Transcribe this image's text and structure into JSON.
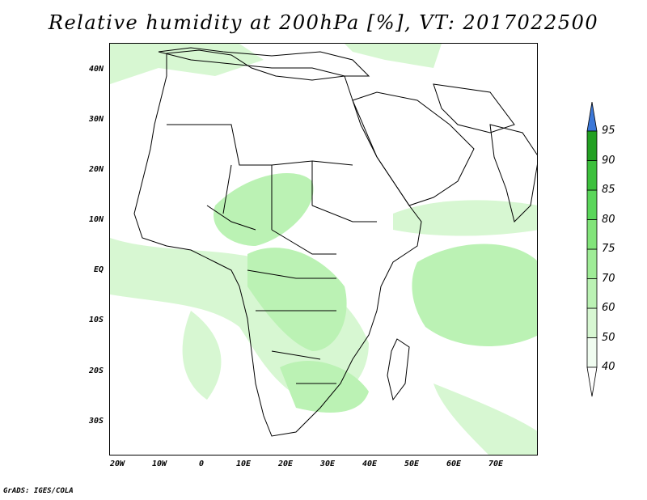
{
  "title": "Relative humidity at 200hPa [%], VT: 2017022500",
  "credit": "GrADS: IGES/COLA",
  "map": {
    "lat_labels": [
      "40N",
      "30N",
      "20N",
      "10N",
      "EQ",
      "10S",
      "20S",
      "30S"
    ],
    "lon_labels": [
      "20W",
      "10W",
      "0",
      "10E",
      "20E",
      "30E",
      "40E",
      "50E",
      "60E",
      "70E"
    ],
    "background_color": "#ffffff",
    "boundary_color": "#000000"
  },
  "colorbar": {
    "levels": [
      "40",
      "50",
      "60",
      "70",
      "75",
      "80",
      "85",
      "90",
      "95"
    ],
    "colors": [
      "#f0fcf0",
      "#d7f7d2",
      "#bbf2b4",
      "#9fec97",
      "#82e47a",
      "#5ad65a",
      "#3cc03c",
      "#22a022"
    ],
    "overflow_color": "#3c78d8"
  }
}
